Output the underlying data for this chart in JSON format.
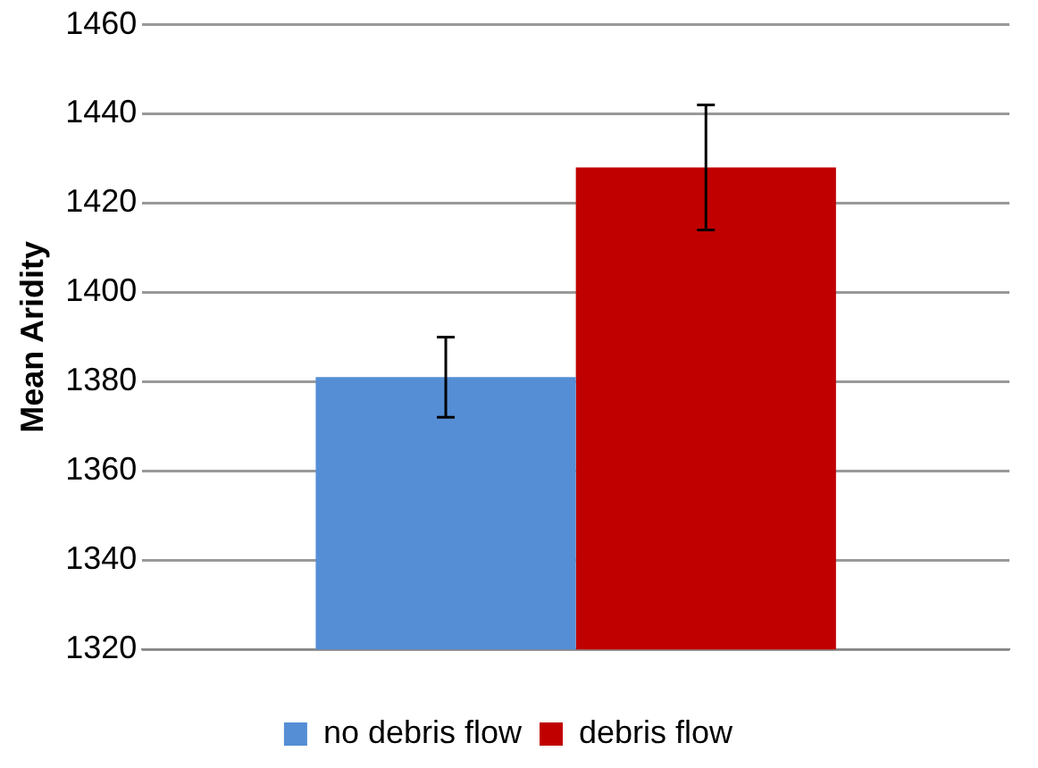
{
  "chart_data": {
    "type": "bar",
    "ylabel": "Mean Aridity",
    "categories": [
      null
    ],
    "series": [
      {
        "name": "no debris flow",
        "color": "#558ed5",
        "values": [
          1381
        ],
        "errors": [
          9
        ]
      },
      {
        "name": "debris flow",
        "color": "#c00000",
        "values": [
          1428
        ],
        "errors": [
          14
        ]
      }
    ],
    "ylim": [
      1320,
      1460
    ],
    "yticks": [
      1320,
      1340,
      1360,
      1380,
      1400,
      1420,
      1440,
      1460
    ],
    "grid": "y",
    "legend": "bottom"
  }
}
